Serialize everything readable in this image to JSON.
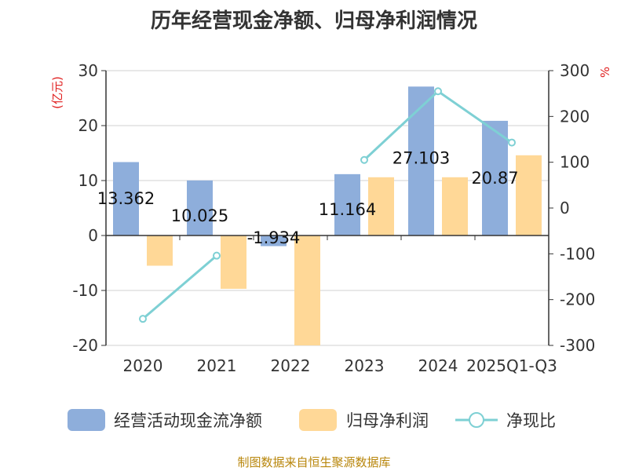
{
  "chart_data": {
    "type": "bar",
    "title": "历年经营现金净额、归母净利润情况",
    "categories": [
      "2020",
      "2021",
      "2022",
      "2023",
      "2024",
      "2025Q1-Q3"
    ],
    "series": [
      {
        "name": "经营活动现金流净额",
        "type": "bar",
        "axis": "left",
        "color": "#8eaedb",
        "values": [
          13.362,
          10.025,
          -1.934,
          11.164,
          27.103,
          20.87
        ],
        "labels": [
          "13.362",
          "10.025",
          "-1.934",
          "11.164",
          "27.103",
          "20.87"
        ]
      },
      {
        "name": "归母净利润",
        "type": "bar",
        "axis": "left",
        "color": "#ffd897",
        "values": [
          -5.5,
          -9.7,
          -20.0,
          10.6,
          10.6,
          14.6
        ]
      },
      {
        "name": "净现比",
        "type": "line",
        "axis": "right",
        "color": "#7ed0d4",
        "values": [
          -242,
          -104,
          null,
          105,
          255,
          143
        ]
      }
    ],
    "left_axis": {
      "label": "(亿元)",
      "ylim": [
        -20,
        30
      ],
      "ticks": [
        30,
        20,
        10,
        0,
        -10,
        -20
      ],
      "tick_labels": [
        "30",
        "20",
        "10",
        "0",
        "-10",
        "-20"
      ]
    },
    "right_axis": {
      "label": "%",
      "ylim": [
        -300,
        300
      ],
      "ticks": [
        300,
        200,
        100,
        0,
        -100,
        -200,
        -300
      ],
      "tick_labels": [
        "300",
        "200",
        "100",
        "0",
        "-100",
        "-200",
        "-300"
      ]
    },
    "legend_position": "bottom",
    "grid": true
  },
  "source_note": "制图数据来自恒生聚源数据库"
}
